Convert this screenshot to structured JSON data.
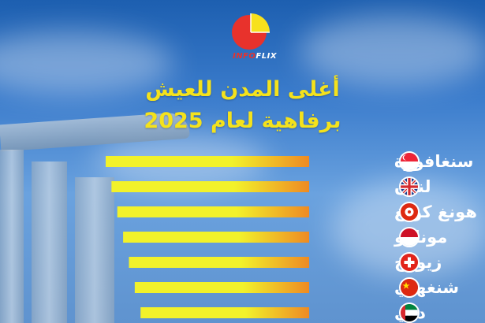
{
  "brand": {
    "logo_prefix": "INFO",
    "logo_suffix": "FLIX",
    "colors": {
      "logo_red": "#e8322c",
      "logo_yellow": "#f7e11c"
    }
  },
  "title_line1": "أغلى المدن للعيش",
  "title_line2": "برفاهية لعام 2025",
  "colors": {
    "title": "#f4e21c",
    "bar_start": "#f2f22a",
    "bar_end": "#ee8a24",
    "label": "#ffffff"
  },
  "chart_data": {
    "type": "bar",
    "orientation": "horizontal",
    "title": "أغلى المدن للعيش برفاهية لعام 2025",
    "categories": [
      "سنغافورة",
      "لندن",
      "هونغ كونغ",
      "موناكو",
      "زيورخ",
      "شنغهاي",
      "دبي"
    ],
    "flags": [
      "singapore-flag-icon",
      "uk-flag-icon",
      "hong-kong-flag-icon",
      "monaco-flag-icon",
      "switzerland-flag-icon",
      "china-flag-icon",
      "uae-flag-icon"
    ],
    "series": [
      {
        "values": [
          7,
          6.8,
          6.6,
          6.4,
          6.2,
          6.0,
          5.8
        ]
      }
    ],
    "xlabel": "",
    "ylabel": "",
    "grid": false,
    "legend": "none"
  }
}
